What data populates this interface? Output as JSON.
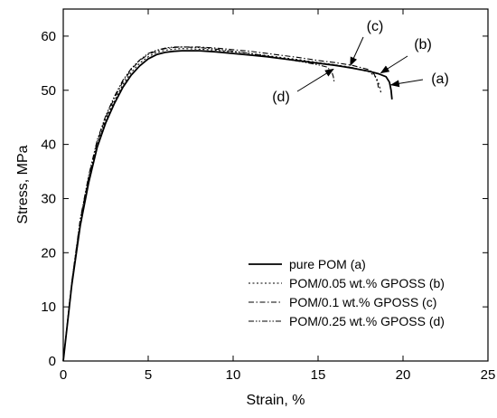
{
  "chart_data": {
    "type": "line",
    "xlabel": "Strain, %",
    "ylabel": "Stress, MPa",
    "xlim": [
      0,
      25
    ],
    "ylim": [
      0,
      65
    ],
    "xticks": [
      0,
      5,
      10,
      15,
      20,
      25
    ],
    "yticks": [
      0,
      10,
      20,
      30,
      40,
      50,
      60
    ],
    "grid": false,
    "legend_position": "bottom-right",
    "series": [
      {
        "name": "pure POM (a)",
        "dash": "solid",
        "x": [
          0,
          0.5,
          1,
          1.5,
          2,
          2.5,
          3,
          3.5,
          4,
          4.5,
          5,
          5.5,
          6,
          6.5,
          7,
          8,
          9,
          10,
          11,
          12,
          13,
          14,
          15,
          16,
          17,
          18,
          18.6,
          19.0,
          19.2,
          19.3,
          19.35
        ],
        "y": [
          0,
          14,
          25,
          33,
          39.5,
          44,
          47.5,
          50.5,
          52.8,
          54.5,
          55.8,
          56.6,
          57,
          57.2,
          57.3,
          57.3,
          57.1,
          56.8,
          56.5,
          56.2,
          55.8,
          55.4,
          55,
          54.6,
          54.1,
          53.5,
          53,
          52.5,
          51.5,
          50,
          48.3
        ]
      },
      {
        "name": "POM/0.05 wt.% GPOSS (b)",
        "dash": "dotted",
        "x": [
          0,
          0.5,
          1,
          1.5,
          2,
          2.5,
          3,
          3.5,
          4,
          4.5,
          5,
          5.5,
          6,
          6.5,
          7,
          8,
          9,
          10,
          11,
          12,
          13,
          14,
          15,
          16,
          17,
          18,
          18.4,
          18.6,
          18.7
        ],
        "y": [
          0,
          14.3,
          25.5,
          33.5,
          40,
          44.5,
          48,
          51,
          53.3,
          55,
          56.2,
          57,
          57.4,
          57.6,
          57.7,
          57.6,
          57.4,
          57.1,
          56.8,
          56.4,
          56,
          55.6,
          55.1,
          54.7,
          54.2,
          53.4,
          52.5,
          51,
          49.5
        ]
      },
      {
        "name": "POM/0.1 wt.% GPOSS (c)",
        "dash": "dashdot",
        "x": [
          0,
          0.5,
          1,
          1.5,
          2,
          2.5,
          3,
          3.5,
          4,
          4.5,
          5,
          5.5,
          6,
          6.5,
          7,
          8,
          9,
          10,
          11,
          12,
          13,
          14,
          15,
          16,
          17,
          18,
          18.3,
          18.5,
          18.55
        ],
        "y": [
          0,
          14.5,
          26,
          34,
          40.5,
          45,
          48.5,
          51.5,
          53.8,
          55.5,
          56.6,
          57.3,
          57.7,
          57.9,
          58,
          58,
          57.8,
          57.5,
          57.2,
          56.8,
          56.4,
          56,
          55.5,
          55.1,
          54.6,
          53.8,
          53,
          51.5,
          50.5
        ]
      },
      {
        "name": "POM/0.25 wt.% GPOSS (d)",
        "dash": "dashdotdot",
        "x": [
          0,
          0.5,
          1,
          1.5,
          2,
          2.5,
          3,
          3.5,
          4,
          4.5,
          5,
          5.5,
          6,
          6.5,
          7,
          8,
          9,
          10,
          11,
          12,
          13,
          14,
          15,
          15.5,
          15.8,
          15.9,
          15.95
        ],
        "y": [
          0,
          14.6,
          26.2,
          34.3,
          40.8,
          45.3,
          48.8,
          51.8,
          54,
          55.6,
          56.8,
          57.4,
          57.8,
          58,
          58,
          57.9,
          57.6,
          57.2,
          56.8,
          56.3,
          55.8,
          55.3,
          54.7,
          54.3,
          53.5,
          52.5,
          51.5
        ]
      }
    ],
    "annotations": [
      {
        "label": "(a)",
        "arrow_to": [
          19.3,
          51
        ]
      },
      {
        "label": "(b)",
        "arrow_to": [
          18.7,
          53.2
        ]
      },
      {
        "label": "(c)",
        "arrow_to": [
          16.9,
          54.6
        ]
      },
      {
        "label": "(d)",
        "arrow_to": [
          15.9,
          53.9
        ]
      }
    ]
  }
}
